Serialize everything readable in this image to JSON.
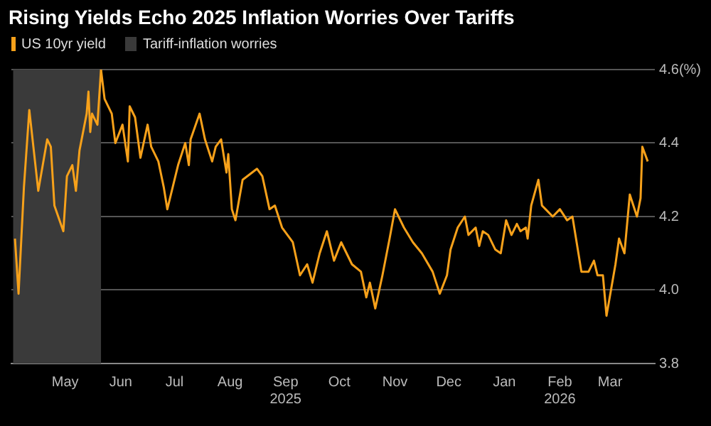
{
  "chart_data": {
    "type": "line",
    "title": "Rising Yields Echo 2025 Inflation Worries Over Tariffs",
    "x": [
      "2025-04-03",
      "2025-04-05",
      "2025-04-08",
      "2025-04-11",
      "2025-04-16",
      "2025-04-21",
      "2025-04-23",
      "2025-04-25",
      "2025-04-30",
      "2025-05-02",
      "2025-05-05",
      "2025-05-07",
      "2025-05-09",
      "2025-05-13",
      "2025-05-14",
      "2025-05-15",
      "2025-05-16",
      "2025-05-19",
      "2025-05-21",
      "2025-05-23",
      "2025-05-27",
      "2025-05-29",
      "2025-06-02",
      "2025-06-05",
      "2025-06-06",
      "2025-06-09",
      "2025-06-12",
      "2025-06-16",
      "2025-06-18",
      "2025-06-22",
      "2025-06-25",
      "2025-06-27",
      "2025-07-03",
      "2025-07-07",
      "2025-07-09",
      "2025-07-10",
      "2025-07-15",
      "2025-07-18",
      "2025-07-22",
      "2025-07-24",
      "2025-07-27",
      "2025-07-30",
      "2025-07-31",
      "2025-08-02",
      "2025-08-04",
      "2025-08-08",
      "2025-08-16",
      "2025-08-19",
      "2025-08-23",
      "2025-08-26",
      "2025-08-30",
      "2025-09-05",
      "2025-09-09",
      "2025-09-13",
      "2025-09-16",
      "2025-09-20",
      "2025-09-24",
      "2025-09-28",
      "2025-10-02",
      "2025-10-08",
      "2025-10-13",
      "2025-10-16",
      "2025-10-18",
      "2025-10-21",
      "2025-10-25",
      "2025-10-29",
      "2025-11-01",
      "2025-11-06",
      "2025-11-11",
      "2025-11-16",
      "2025-11-22",
      "2025-11-26",
      "2025-11-30",
      "2025-12-02",
      "2025-12-06",
      "2025-12-10",
      "2025-12-12",
      "2025-12-16",
      "2025-12-18",
      "2025-12-20",
      "2025-12-23",
      "2025-12-27",
      "2025-12-30",
      "2026-01-02",
      "2026-01-05",
      "2026-01-08",
      "2026-01-10",
      "2026-01-13",
      "2026-01-14",
      "2026-01-16",
      "2026-01-20",
      "2026-01-22",
      "2026-01-24",
      "2026-01-28",
      "2026-02-01",
      "2026-02-05",
      "2026-02-08",
      "2026-02-10",
      "2026-02-13",
      "2026-02-17",
      "2026-02-20",
      "2026-02-22",
      "2026-02-25",
      "2026-02-27",
      "2026-03-04",
      "2026-03-06",
      "2026-03-09",
      "2026-03-12",
      "2026-03-14",
      "2026-03-16",
      "2026-03-18",
      "2026-03-19",
      "2026-03-22"
    ],
    "series": [
      {
        "name": "US 10yr yield",
        "color": "#f7a11a",
        "values": [
          4.14,
          3.99,
          4.28,
          4.49,
          4.27,
          4.41,
          4.39,
          4.23,
          4.16,
          4.31,
          4.34,
          4.27,
          4.38,
          4.48,
          4.54,
          4.43,
          4.48,
          4.45,
          4.6,
          4.52,
          4.48,
          4.4,
          4.45,
          4.35,
          4.5,
          4.47,
          4.36,
          4.45,
          4.39,
          4.35,
          4.28,
          4.22,
          4.34,
          4.4,
          4.34,
          4.41,
          4.48,
          4.41,
          4.35,
          4.39,
          4.41,
          4.32,
          4.37,
          4.22,
          4.19,
          4.3,
          4.33,
          4.31,
          4.22,
          4.23,
          4.17,
          4.13,
          4.04,
          4.07,
          4.02,
          4.1,
          4.16,
          4.08,
          4.13,
          4.07,
          4.05,
          3.98,
          4.02,
          3.95,
          4.04,
          4.14,
          4.22,
          4.17,
          4.13,
          4.1,
          4.05,
          3.99,
          4.04,
          4.11,
          4.17,
          4.2,
          4.15,
          4.17,
          4.12,
          4.16,
          4.15,
          4.11,
          4.1,
          4.19,
          4.15,
          4.18,
          4.16,
          4.17,
          4.14,
          4.23,
          4.3,
          4.23,
          4.22,
          4.2,
          4.22,
          4.19,
          4.2,
          4.14,
          4.05,
          4.05,
          4.08,
          4.04,
          4.04,
          3.93,
          4.07,
          4.14,
          4.1,
          4.26,
          4.23,
          4.2,
          4.25,
          4.39,
          4.35
        ]
      }
    ],
    "bands": [
      {
        "axis": "x",
        "from": "2025-04-02",
        "to": "2025-05-21",
        "label": "Tariff-inflation worries",
        "color": "#3a3a3a"
      }
    ],
    "xlim": [
      "2025-04-01",
      "2026-03-26"
    ],
    "xticks": [
      {
        "value": "2025-05-01",
        "label": "May"
      },
      {
        "value": "2025-06-01",
        "label": "Jun"
      },
      {
        "value": "2025-07-01",
        "label": "Jul"
      },
      {
        "value": "2025-08-01",
        "label": "Aug"
      },
      {
        "value": "2025-09-01",
        "label": "Sep\n2025"
      },
      {
        "value": "2025-10-01",
        "label": "Oct"
      },
      {
        "value": "2025-11-01",
        "label": "Nov"
      },
      {
        "value": "2025-12-01",
        "label": "Dec"
      },
      {
        "value": "2026-01-01",
        "label": "Jan"
      },
      {
        "value": "2026-02-01",
        "label": "Feb\n2026"
      },
      {
        "value": "2026-03-01",
        "label": "Mar"
      }
    ],
    "ylim": [
      3.8,
      4.6
    ],
    "yticks": [
      3.8,
      {
        "value": 4.0,
        "label": "4.0"
      },
      4.2,
      4.4,
      {
        "value": 4.6,
        "label": "4.6(%)"
      }
    ],
    "grid": "y",
    "legend": "top left",
    "marker": "none",
    "line_style": "solid"
  }
}
